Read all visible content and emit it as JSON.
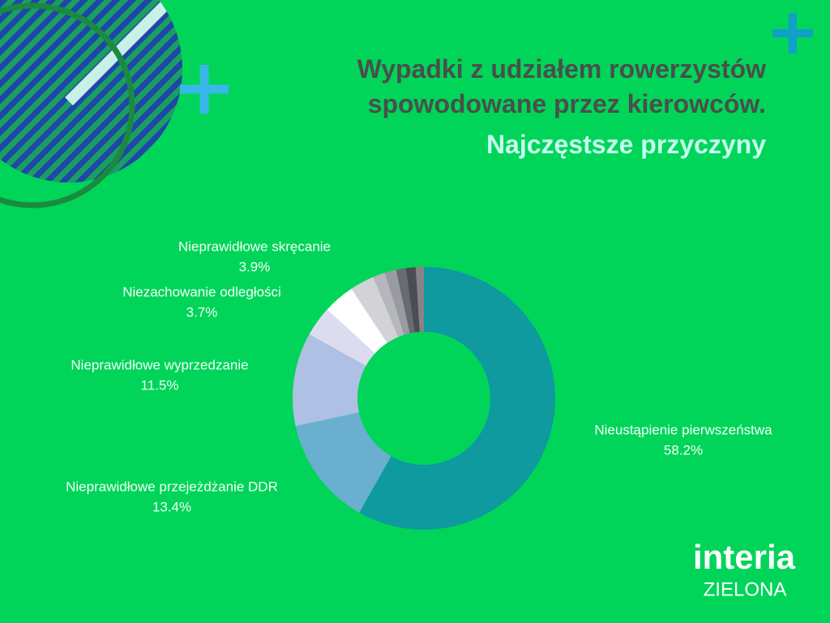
{
  "chart_data": {
    "type": "donut",
    "title": "Wypadki z udziałem rowerzystów spowodowane przez kierowców.",
    "subtitle": "Najczęstsze przyczyny",
    "categories": [
      "Nieustąpienie pierwszeństwa",
      "Nieprawidłowe przejeżdżanie DDR",
      "Nieprawidłowe wyprzedzanie",
      "Niezachowanie odległości",
      "Nieprawidłowe skręcanie",
      null,
      null,
      null,
      null,
      null,
      null
    ],
    "values": [
      58.2,
      13.4,
      11.5,
      3.7,
      3.9,
      3.0,
      1.5,
      1.4,
      1.2,
      1.2,
      1.0
    ],
    "value_labels": [
      "58.2%",
      "13.4%",
      "11.5%",
      "3.7%",
      "3.9%",
      null,
      null,
      null,
      null,
      null,
      null
    ],
    "colors": [
      "#0e9a9e",
      "#6aafcf",
      "#aec0e4",
      "#dcdcf0",
      "#ffffff",
      "#d2d2d8",
      "#b6b6bc",
      "#9a9aa2",
      "#6a6a72",
      "#4c4c54",
      "#8a8286"
    ]
  },
  "logo": {
    "brand": "interia",
    "tagline": "ZIELONA"
  }
}
